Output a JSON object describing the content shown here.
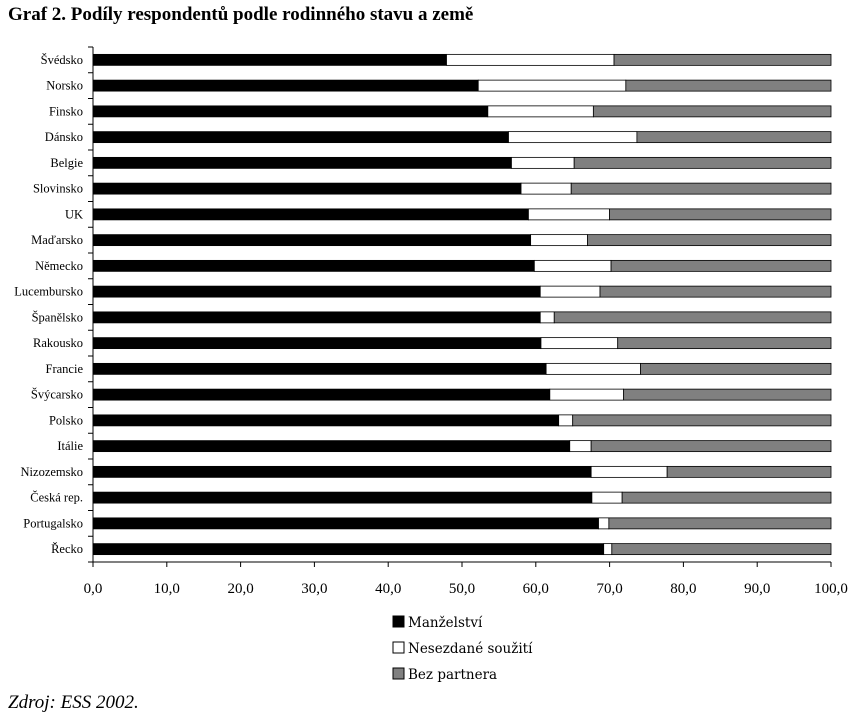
{
  "title": "Graf 2. Podíly respondentů podle rodinného stavu a země",
  "source": "Zdroj: ESS 2002.",
  "chart_data": {
    "type": "bar",
    "orientation": "horizontal",
    "stacked": true,
    "categories": [
      "Švédsko",
      "Norsko",
      "Finsko",
      "Dánsko",
      "Belgie",
      "Slovinsko",
      "UK",
      "Maďarsko",
      "Německo",
      "Lucembursko",
      "Španělsko",
      "Rakousko",
      "Francie",
      "Švýcarsko",
      "Polsko",
      "Itálie",
      "Nizozemsko",
      "Česká rep.",
      "Portugalsko",
      "Řecko"
    ],
    "series": [
      {
        "name": "Manželství",
        "color": "#000000",
        "values": [
          47.9,
          52.2,
          53.5,
          56.3,
          56.7,
          58.0,
          59.0,
          59.3,
          59.8,
          60.6,
          60.6,
          60.7,
          61.4,
          61.9,
          63.1,
          64.6,
          67.5,
          67.6,
          68.5,
          69.2
        ]
      },
      {
        "name": "Nesezdané soužití",
        "color": "#ffffff",
        "values": [
          22.7,
          20.0,
          14.3,
          17.4,
          8.5,
          6.8,
          11.0,
          7.7,
          10.4,
          8.1,
          1.9,
          10.4,
          12.8,
          10.0,
          1.9,
          2.9,
          10.3,
          4.1,
          1.4,
          1.1
        ]
      },
      {
        "name": "Bez partnera",
        "color": "#808080",
        "values": [
          29.4,
          27.8,
          32.2,
          26.3,
          34.8,
          35.2,
          30.0,
          33.0,
          29.8,
          31.3,
          37.5,
          28.9,
          25.8,
          28.1,
          35.0,
          32.5,
          22.2,
          28.3,
          30.1,
          29.7
        ]
      }
    ],
    "xlim": [
      0,
      100
    ],
    "xticks": [
      "0,0",
      "10,0",
      "20,0",
      "30,0",
      "40,0",
      "50,0",
      "60,0",
      "70,0",
      "80,0",
      "90,0",
      "100,0"
    ],
    "grid": false,
    "legend_position": "bottom"
  }
}
